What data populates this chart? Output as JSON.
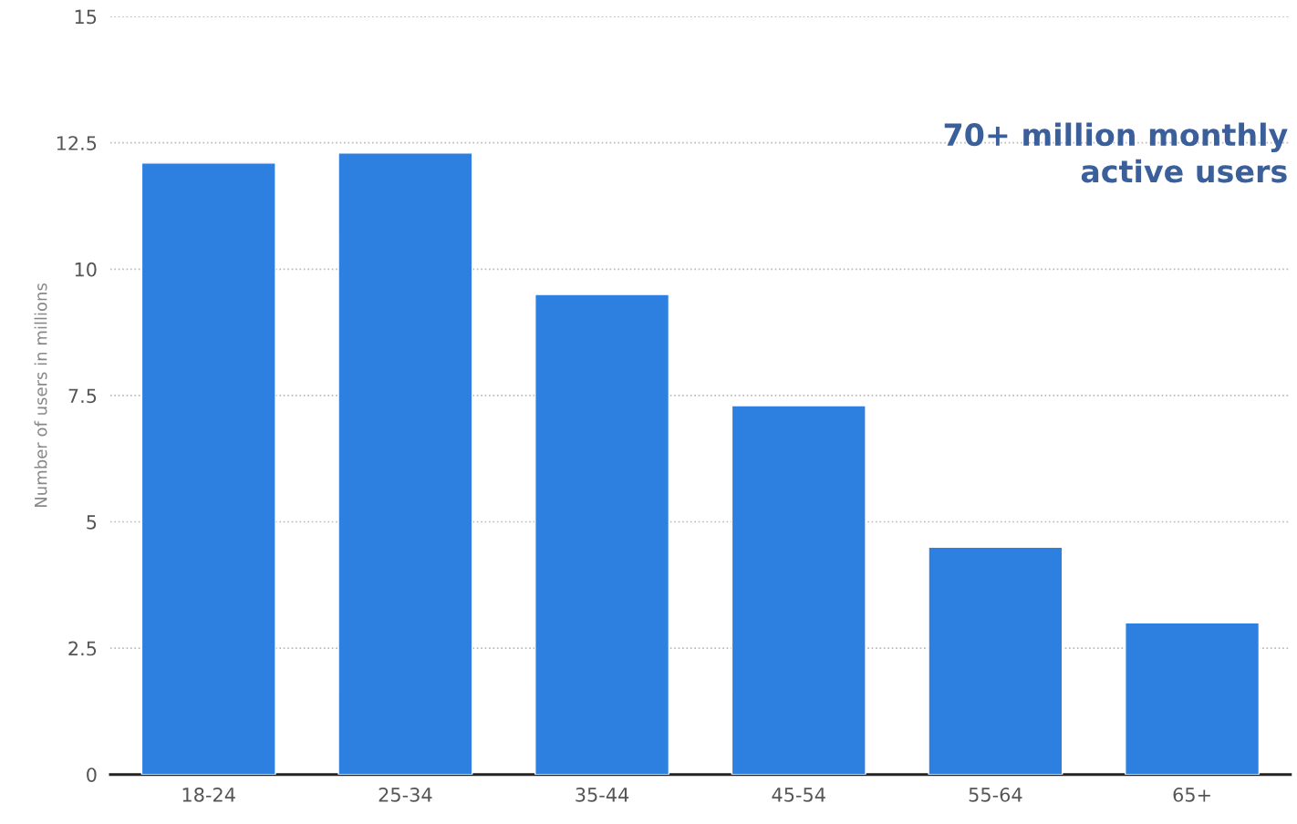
{
  "chart_data": {
    "type": "bar",
    "ylabel": "Number of users in millions",
    "categories": [
      "18-24",
      "25-34",
      "35-44",
      "45-54",
      "55-64",
      "65+"
    ],
    "values": [
      12.1,
      12.3,
      9.5,
      7.3,
      4.5,
      3.0
    ],
    "color": "#2e80e0",
    "ylim": [
      0,
      15
    ],
    "yticks": [
      0,
      2.5,
      5,
      7.5,
      10,
      12.5,
      15
    ],
    "grid": "y",
    "annotations": [
      "70+ million monthly\nactive users"
    ]
  }
}
